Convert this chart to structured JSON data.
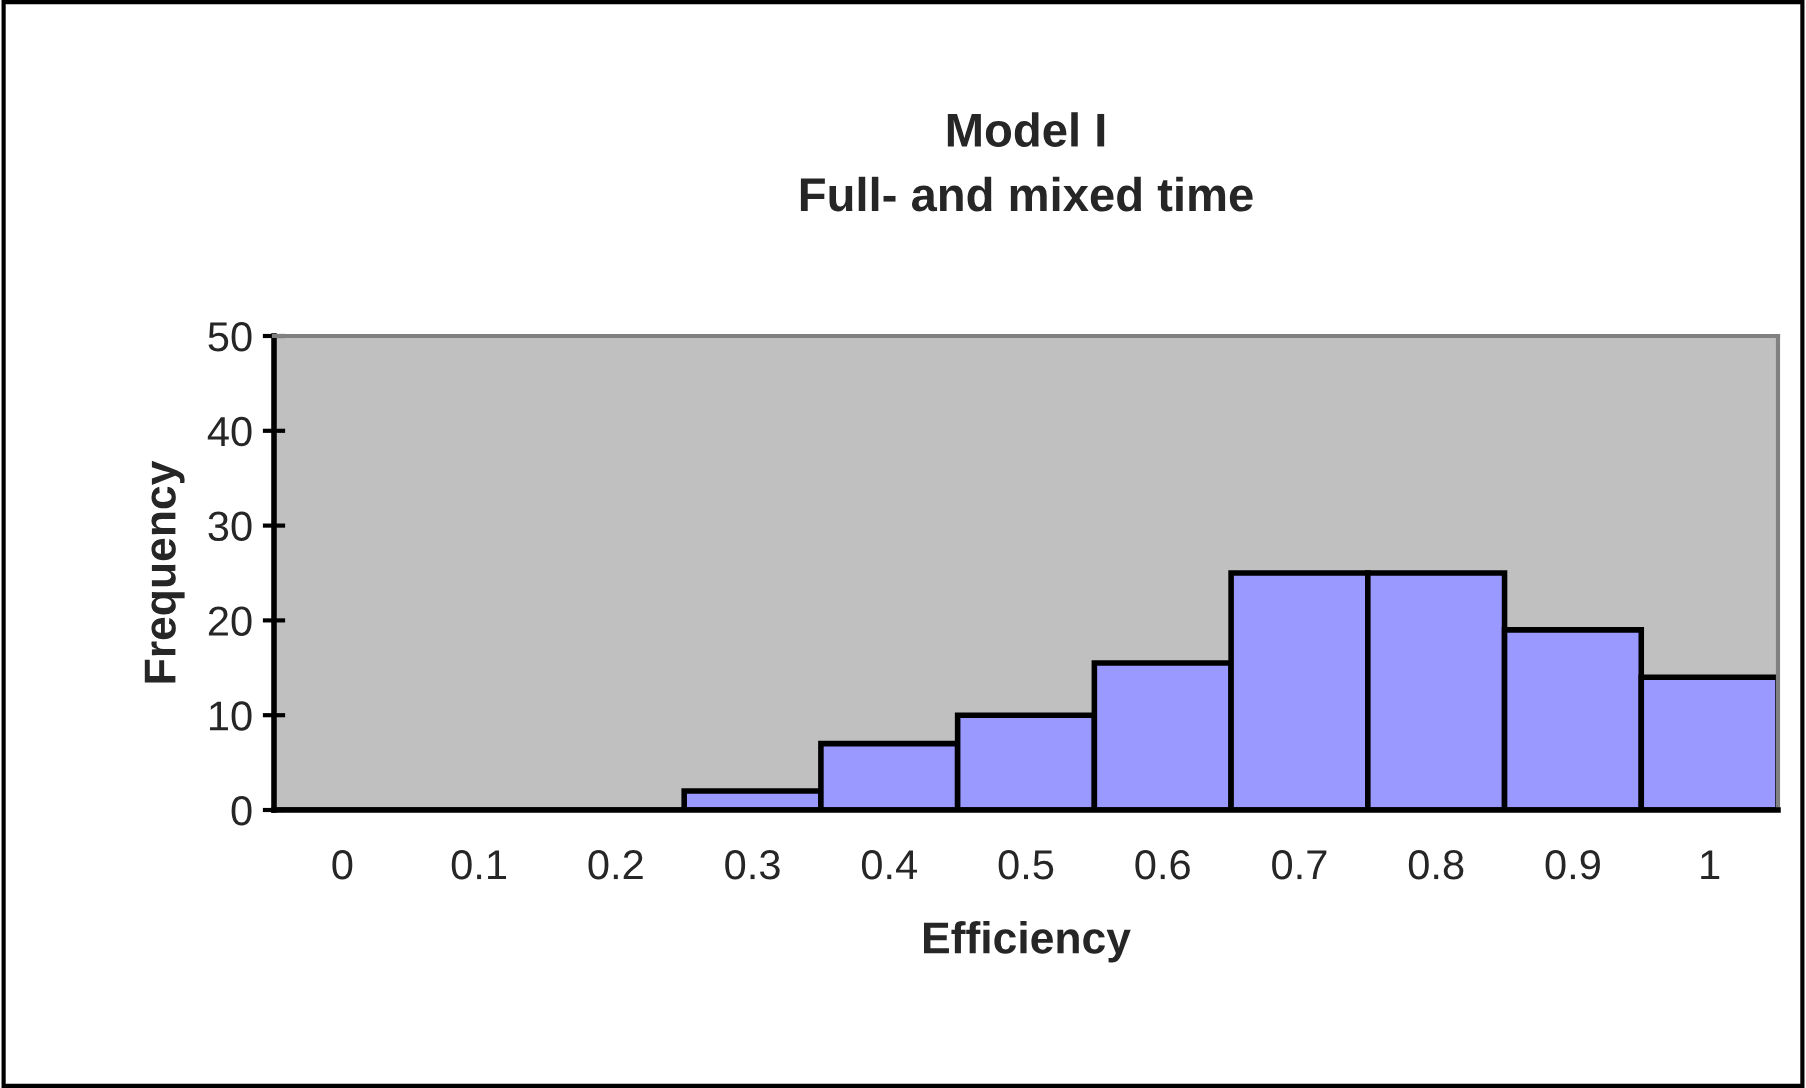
{
  "chart_data": {
    "type": "bar",
    "title": "Model I\nFull- and mixed time",
    "xlabel": "Efficiency",
    "ylabel": "Frequency",
    "categories": [
      "0",
      "0.1",
      "0.2",
      "0.3",
      "0.4",
      "0.5",
      "0.6",
      "0.7",
      "0.8",
      "0.9",
      "1"
    ],
    "values": [
      0,
      0,
      0,
      2,
      7,
      10,
      15.5,
      25,
      25,
      19,
      14
    ],
    "color": "#9999ff",
    "ylim": [
      0,
      50
    ],
    "yticks": [
      0,
      10,
      20,
      30,
      40,
      50
    ],
    "grid": false,
    "legend": false
  }
}
